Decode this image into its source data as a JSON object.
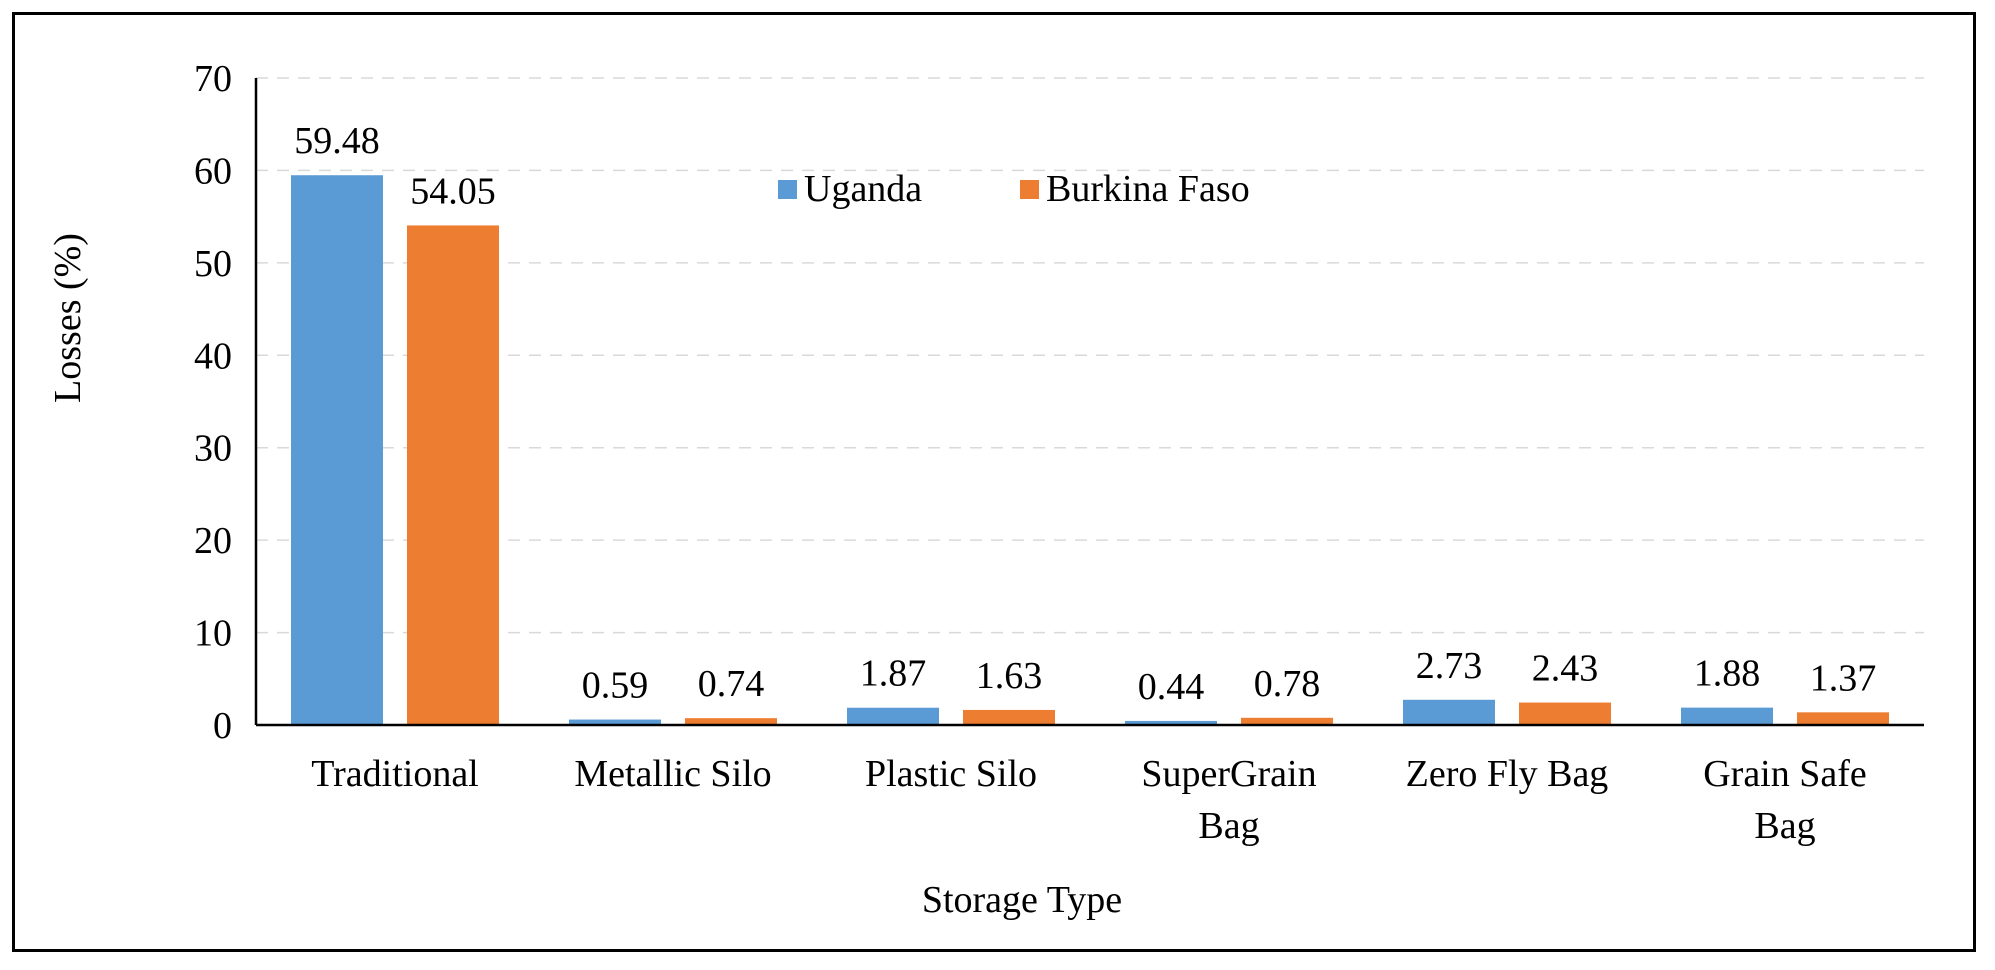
{
  "chart_data": {
    "type": "bar",
    "title": "",
    "xlabel": "Storage Type",
    "ylabel": "Losses (%)",
    "ylim": [
      0,
      70
    ],
    "yticks": [
      0,
      10,
      20,
      30,
      40,
      50,
      60,
      70
    ],
    "grid": true,
    "legend_position": "top-center",
    "categories": [
      "Traditional",
      "Metallic Silo",
      "Plastic Silo",
      "SuperGrain Bag",
      "Zero Fly Bag",
      "Grain Safe Bag"
    ],
    "series": [
      {
        "name": "Uganda",
        "color": "#5B9BD5",
        "values": [
          59.48,
          0.59,
          1.87,
          0.44,
          2.73,
          1.88
        ],
        "labels": [
          "59.48",
          "0.59",
          "1.87",
          "0.44",
          "2.73",
          "1.88"
        ]
      },
      {
        "name": "Burkina Faso",
        "color": "#ED7D31",
        "values": [
          54.05,
          0.74,
          1.63,
          0.78,
          2.43,
          1.37
        ],
        "labels": [
          "54.05",
          "0.74",
          "1.63",
          "0.78",
          "2.43",
          "1.37"
        ]
      }
    ]
  }
}
